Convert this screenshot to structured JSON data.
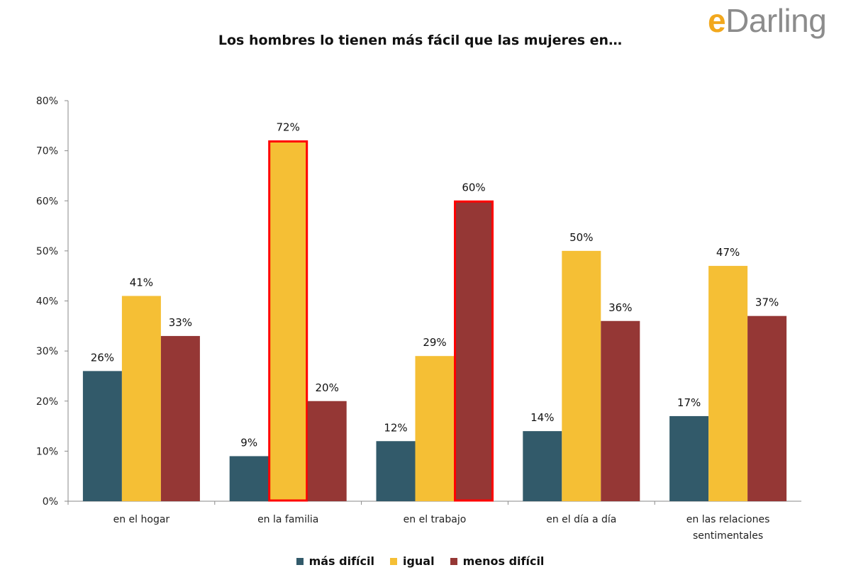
{
  "logo": {
    "e": "e",
    "rest": "Darling"
  },
  "chart_data": {
    "type": "bar",
    "title": "Los hombres lo tienen más fácil que las mujeres en…",
    "categories": [
      "en el hogar",
      "en la familia",
      "en el trabajo",
      "en el día a día",
      "en las relaciones sentimentales"
    ],
    "category_lines": [
      [
        "en el hogar"
      ],
      [
        "en la familia"
      ],
      [
        "en el trabajo"
      ],
      [
        "en el día a día"
      ],
      [
        "en las relaciones",
        "sentimentales"
      ]
    ],
    "series": [
      {
        "name": "más difícil",
        "values": [
          26,
          9,
          12,
          14,
          17
        ],
        "color": "#325a6a"
      },
      {
        "name": "igual",
        "values": [
          41,
          72,
          29,
          50,
          47
        ],
        "color": "#f5bf35"
      },
      {
        "name": "menos difícil",
        "values": [
          33,
          20,
          60,
          36,
          37
        ],
        "color": "#953735"
      }
    ],
    "value_suffix": "%",
    "ylim": [
      0,
      80
    ],
    "yticks": [
      0,
      10,
      20,
      30,
      40,
      50,
      60,
      70,
      80
    ],
    "ytick_labels": [
      "0%",
      "10%",
      "20%",
      "30%",
      "40%",
      "50%",
      "60%",
      "70%",
      "80%"
    ],
    "highlighted": [
      {
        "category": "en la familia",
        "series": "igual",
        "outline_color": "#ff0000"
      },
      {
        "category": "en el trabajo",
        "series": "menos difícil",
        "outline_color": "#ff0000"
      }
    ],
    "legend_position": "bottom",
    "grid": false
  }
}
